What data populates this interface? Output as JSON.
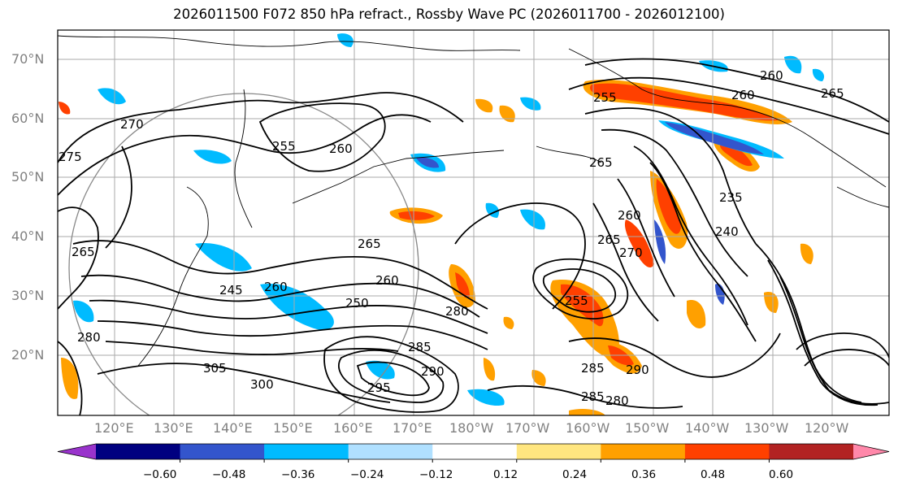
{
  "title": "2026011500 F072 850 hPa refract., Rossby Wave PC (2026011700 - 2026012100)",
  "lat_labels": [
    "70°N",
    "60°N",
    "50°N",
    "40°N",
    "30°N",
    "20°N"
  ],
  "lon_labels": [
    "120°E",
    "130°E",
    "140°E",
    "150°E",
    "160°E",
    "170°E",
    "180°W",
    "170°W",
    "160°W",
    "150°W",
    "140°W",
    "130°W",
    "120°W"
  ],
  "colorbar": {
    "colors": [
      "#9933cc",
      "#000080",
      "#3355cc",
      "#00bbff",
      "#b0e0ff",
      "#ffffff",
      "#ffe680",
      "#ffa000",
      "#ff4000",
      "#b22222",
      "#ff88aa"
    ],
    "ticks": [
      "−0.60",
      "−0.48",
      "−0.36",
      "−0.24",
      "−0.12",
      "0.12",
      "0.24",
      "0.36",
      "0.48",
      "0.60"
    ]
  },
  "contour_labels": [
    {
      "text": "270"
    },
    {
      "text": "275"
    },
    {
      "text": "255"
    },
    {
      "text": "260"
    },
    {
      "text": "265"
    },
    {
      "text": "265"
    },
    {
      "text": "260"
    },
    {
      "text": "245"
    },
    {
      "text": "250"
    },
    {
      "text": "260"
    },
    {
      "text": "280"
    },
    {
      "text": "285"
    },
    {
      "text": "305"
    },
    {
      "text": "300"
    },
    {
      "text": "295"
    },
    {
      "text": "290"
    },
    {
      "text": "255"
    },
    {
      "text": "260"
    },
    {
      "text": "260"
    },
    {
      "text": "265"
    },
    {
      "text": "265"
    },
    {
      "text": "260"
    },
    {
      "text": "265"
    },
    {
      "text": "270"
    },
    {
      "text": "235"
    },
    {
      "text": "240"
    },
    {
      "text": "280"
    },
    {
      "text": "285"
    },
    {
      "text": "290"
    },
    {
      "text": "280"
    },
    {
      "text": "285"
    },
    {
      "text": "255"
    }
  ]
}
